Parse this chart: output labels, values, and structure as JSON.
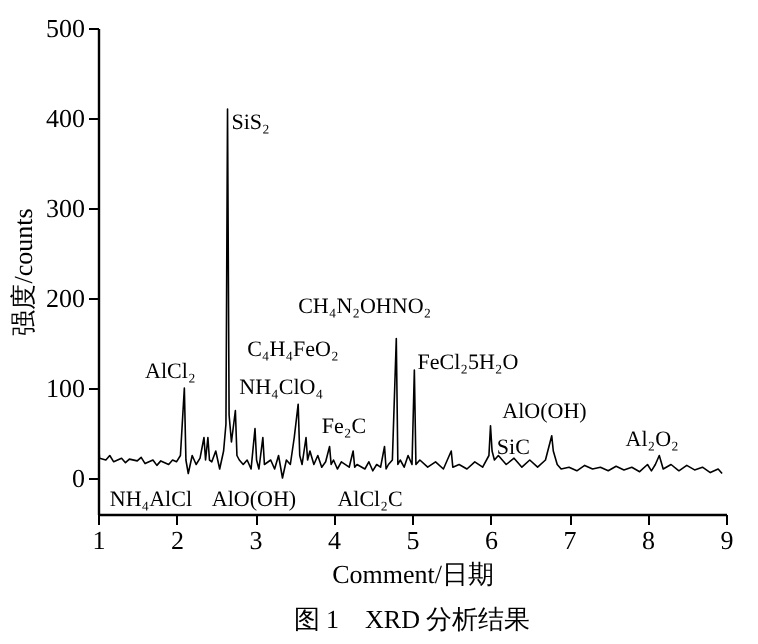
{
  "chart_data": {
    "type": "line",
    "title": "图 1　XRD 分析结果",
    "xlabel": "Comment/日期",
    "ylabel": "强度/counts",
    "xlim": [
      1,
      9
    ],
    "ylim": [
      -40,
      500
    ],
    "xticks": [
      1,
      2,
      3,
      4,
      5,
      6,
      7,
      8,
      9
    ],
    "yticks": [
      0,
      100,
      200,
      300,
      400,
      500
    ],
    "grid": false,
    "series": [
      {
        "color": "#000000",
        "x": [
          1.0,
          1.02,
          1.1,
          1.15,
          1.2,
          1.3,
          1.35,
          1.4,
          1.5,
          1.55,
          1.6,
          1.7,
          1.75,
          1.8,
          1.9,
          1.95,
          2.0,
          2.05,
          2.1,
          2.12,
          2.15,
          2.2,
          2.25,
          2.3,
          2.35,
          2.37,
          2.4,
          2.42,
          2.45,
          2.5,
          2.55,
          2.6,
          2.63,
          2.65,
          2.67,
          2.7,
          2.75,
          2.77,
          2.8,
          2.85,
          2.9,
          2.95,
          3.0,
          3.02,
          3.05,
          3.1,
          3.12,
          3.2,
          3.25,
          3.3,
          3.35,
          3.4,
          3.45,
          3.5,
          3.55,
          3.57,
          3.6,
          3.65,
          3.67,
          3.7,
          3.75,
          3.8,
          3.85,
          3.9,
          3.95,
          3.97,
          4.0,
          4.05,
          4.1,
          4.2,
          4.25,
          4.27,
          4.3,
          4.4,
          4.45,
          4.5,
          4.55,
          4.6,
          4.65,
          4.67,
          4.7,
          4.75,
          4.8,
          4.82,
          4.85,
          4.9,
          4.95,
          5.0,
          5.03,
          5.05,
          5.1,
          5.2,
          5.3,
          5.4,
          5.5,
          5.52,
          5.6,
          5.7,
          5.8,
          5.9,
          5.98,
          6.0,
          6.02,
          6.05,
          6.1,
          6.2,
          6.3,
          6.4,
          6.5,
          6.6,
          6.7,
          6.78,
          6.8,
          6.85,
          6.9,
          7.0,
          7.1,
          7.2,
          7.3,
          7.4,
          7.5,
          7.6,
          7.7,
          7.8,
          7.9,
          8.0,
          8.05,
          8.1,
          8.15,
          8.2,
          8.3,
          8.4,
          8.5,
          8.6,
          8.7,
          8.8,
          8.9,
          8.95
        ],
        "values": [
          45,
          22,
          20,
          25,
          18,
          22,
          17,
          21,
          19,
          23,
          16,
          20,
          14,
          19,
          15,
          20,
          18,
          25,
          100,
          20,
          5,
          25,
          15,
          22,
          45,
          20,
          45,
          20,
          18,
          30,
          10,
          30,
          60,
          410,
          70,
          40,
          75,
          25,
          20,
          15,
          20,
          10,
          55,
          20,
          10,
          45,
          15,
          20,
          10,
          25,
          0,
          20,
          15,
          45,
          82,
          25,
          15,
          45,
          20,
          30,
          15,
          25,
          12,
          18,
          35,
          15,
          20,
          10,
          18,
          12,
          30,
          12,
          15,
          10,
          18,
          8,
          15,
          12,
          35,
          10,
          15,
          20,
          155,
          15,
          20,
          12,
          25,
          15,
          120,
          15,
          20,
          12,
          18,
          10,
          30,
          12,
          15,
          10,
          18,
          12,
          25,
          58,
          30,
          20,
          25,
          15,
          22,
          12,
          20,
          12,
          20,
          47,
          30,
          15,
          10,
          12,
          8,
          14,
          10,
          12,
          8,
          13,
          9,
          12,
          7,
          15,
          8,
          15,
          25,
          10,
          15,
          8,
          14,
          9,
          12,
          6,
          10,
          5
        ]
      }
    ],
    "annotations": [
      "SiS₂",
      "AlCl₂",
      "NH₄ClO₄",
      "C₄H₄FeO₂",
      "CH₄N₂OHNO₂",
      "FeCl₂5H₂O",
      "Fe₂C",
      "SiC",
      "AlO(OH)",
      "Al₂O₂",
      "NH₄AlCl",
      "AlO(OH)",
      "AlCl₂C"
    ]
  }
}
